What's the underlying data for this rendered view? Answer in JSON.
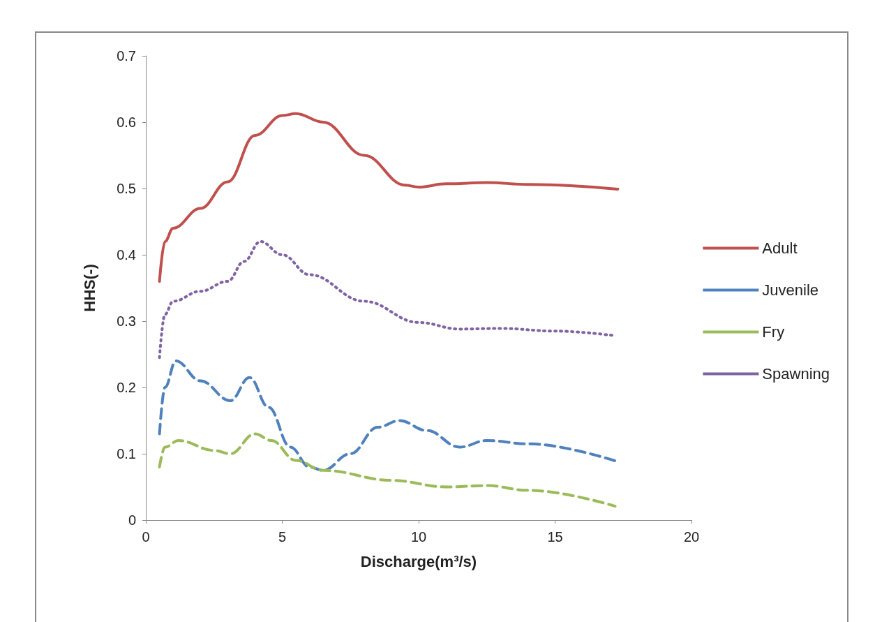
{
  "chart_data": {
    "type": "line",
    "xlabel": "Discharge(m³/s)",
    "ylabel": "HHS(-)",
    "xlim": [
      0,
      20
    ],
    "xticks": [
      0,
      5,
      10,
      15,
      20
    ],
    "ylim": [
      0,
      0.7
    ],
    "yticks": [
      0,
      0.1,
      0.2,
      0.3,
      0.4,
      0.5,
      0.6,
      0.7
    ],
    "grid": false,
    "legend": "right",
    "marker": "none",
    "series": [
      {
        "name": "Adult",
        "color": "#c0504d",
        "line_style": "solid",
        "x": [
          0.5,
          0.7,
          1,
          2,
          3,
          4,
          5,
          5.5,
          6.5,
          8,
          9.5,
          10,
          11,
          12.5,
          14,
          17.3
        ],
        "values": [
          0.36,
          0.42,
          0.44,
          0.47,
          0.51,
          0.58,
          0.61,
          0.613,
          0.6,
          0.55,
          0.505,
          0.502,
          0.507,
          0.509,
          0.506,
          0.499
        ]
      },
      {
        "name": "Juvenile",
        "color": "#4f81bd",
        "line_style": "dashed",
        "x": [
          0.5,
          0.7,
          1.1,
          2,
          3.1,
          3.8,
          4.5,
          5.3,
          6,
          6.5,
          7.5,
          8.5,
          9.3,
          10.3,
          11.5,
          12.5,
          14,
          17.3
        ],
        "values": [
          0.13,
          0.2,
          0.24,
          0.21,
          0.18,
          0.215,
          0.17,
          0.11,
          0.08,
          0.075,
          0.1,
          0.14,
          0.15,
          0.135,
          0.11,
          0.12,
          0.115,
          0.088
        ]
      },
      {
        "name": "Fry",
        "color": "#9bbb59",
        "line_style": "dashed",
        "x": [
          0.5,
          0.7,
          1.2,
          2.5,
          3.1,
          4,
          4.6,
          5.5,
          6.5,
          9,
          11,
          12.5,
          14,
          17.2
        ],
        "values": [
          0.08,
          0.11,
          0.12,
          0.105,
          0.1,
          0.13,
          0.12,
          0.09,
          0.075,
          0.06,
          0.05,
          0.052,
          0.045,
          0.021
        ]
      },
      {
        "name": "Spawning",
        "color": "#8064a2",
        "line_style": "dotted",
        "x": [
          0.5,
          0.7,
          1,
          2,
          3,
          3.6,
          4.2,
          5,
          6,
          8,
          10,
          11.5,
          13,
          15,
          17.2
        ],
        "values": [
          0.245,
          0.31,
          0.33,
          0.345,
          0.36,
          0.39,
          0.42,
          0.4,
          0.37,
          0.33,
          0.298,
          0.288,
          0.289,
          0.285,
          0.278
        ]
      }
    ]
  }
}
